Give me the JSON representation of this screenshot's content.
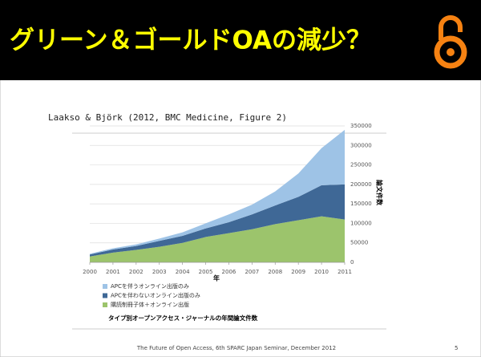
{
  "title": "グリーン＆ゴールドOAの減少？",
  "citation": "Laakso & Björk (2012, BMC Medicine, Figure 2)",
  "footer": "The Future of Open Access, 6th SPARC Japan Seminar, December 2012",
  "page_number": "5",
  "chart_data": {
    "type": "stacked_area",
    "title": "タイプ別オープンアクセス・ジャーナルの年間論文件数",
    "x_label": "年",
    "y_label": "論文件数",
    "x": [
      2000,
      2001,
      2002,
      2003,
      2004,
      2005,
      2006,
      2007,
      2008,
      2009,
      2010,
      2011
    ],
    "xlim": [
      2000,
      2011
    ],
    "xticks": [
      2000,
      2001,
      2002,
      2003,
      2004,
      2005,
      2006,
      2007,
      2008,
      2009,
      2010,
      2011
    ],
    "ylim": [
      0,
      350000
    ],
    "yticks": [
      0,
      50000,
      100000,
      150000,
      200000,
      250000,
      300000,
      350000
    ],
    "grid": true,
    "series": [
      {
        "name": "APCを伴うオンライン出版のみ",
        "color": "#9ec3e6",
        "values": [
          2000,
          3000,
          4000,
          6000,
          9000,
          13000,
          20000,
          25000,
          36000,
          60000,
          95000,
          140000
        ]
      },
      {
        "name": "APCを伴わないオンライン出版のみ",
        "color": "#3f6896",
        "values": [
          5000,
          8000,
          10000,
          15000,
          18000,
          22000,
          28000,
          38000,
          48000,
          60000,
          80000,
          90000
        ]
      },
      {
        "name": "購読制冊子体＋オンライン出版",
        "color": "#9cc46c",
        "values": [
          15000,
          25000,
          32000,
          40000,
          50000,
          65000,
          75000,
          85000,
          98000,
          108000,
          118000,
          110000
        ]
      }
    ]
  }
}
